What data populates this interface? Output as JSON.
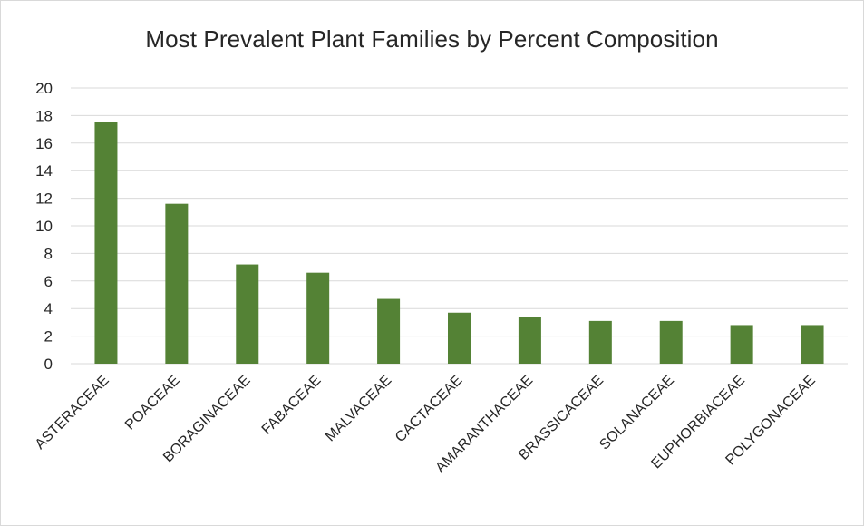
{
  "chart_data": {
    "type": "bar",
    "title": "Most Prevalent Plant Families by Percent Composition",
    "xlabel": "",
    "ylabel": "",
    "categories": [
      "ASTERACEAE",
      "POACEAE",
      "BORAGINACEAE",
      "FABACEAE",
      "MALVACEAE",
      "CACTACEAE",
      "AMARANTHACEAE",
      "BRASSICACEAE",
      "SOLANACEAE",
      "EUPHORBIACEAE",
      "POLYGONACEAE"
    ],
    "values": [
      17.5,
      11.6,
      7.2,
      6.6,
      4.7,
      3.7,
      3.4,
      3.1,
      3.1,
      2.8,
      2.8
    ],
    "ylim": [
      0,
      20
    ],
    "yticks": [
      "0",
      "2",
      "4",
      "6",
      "8",
      "10",
      "12",
      "14",
      "16",
      "18",
      "20"
    ],
    "grid": true,
    "legend": "none",
    "bar_color": "#548235",
    "grid_color": "#d9d9d9"
  }
}
